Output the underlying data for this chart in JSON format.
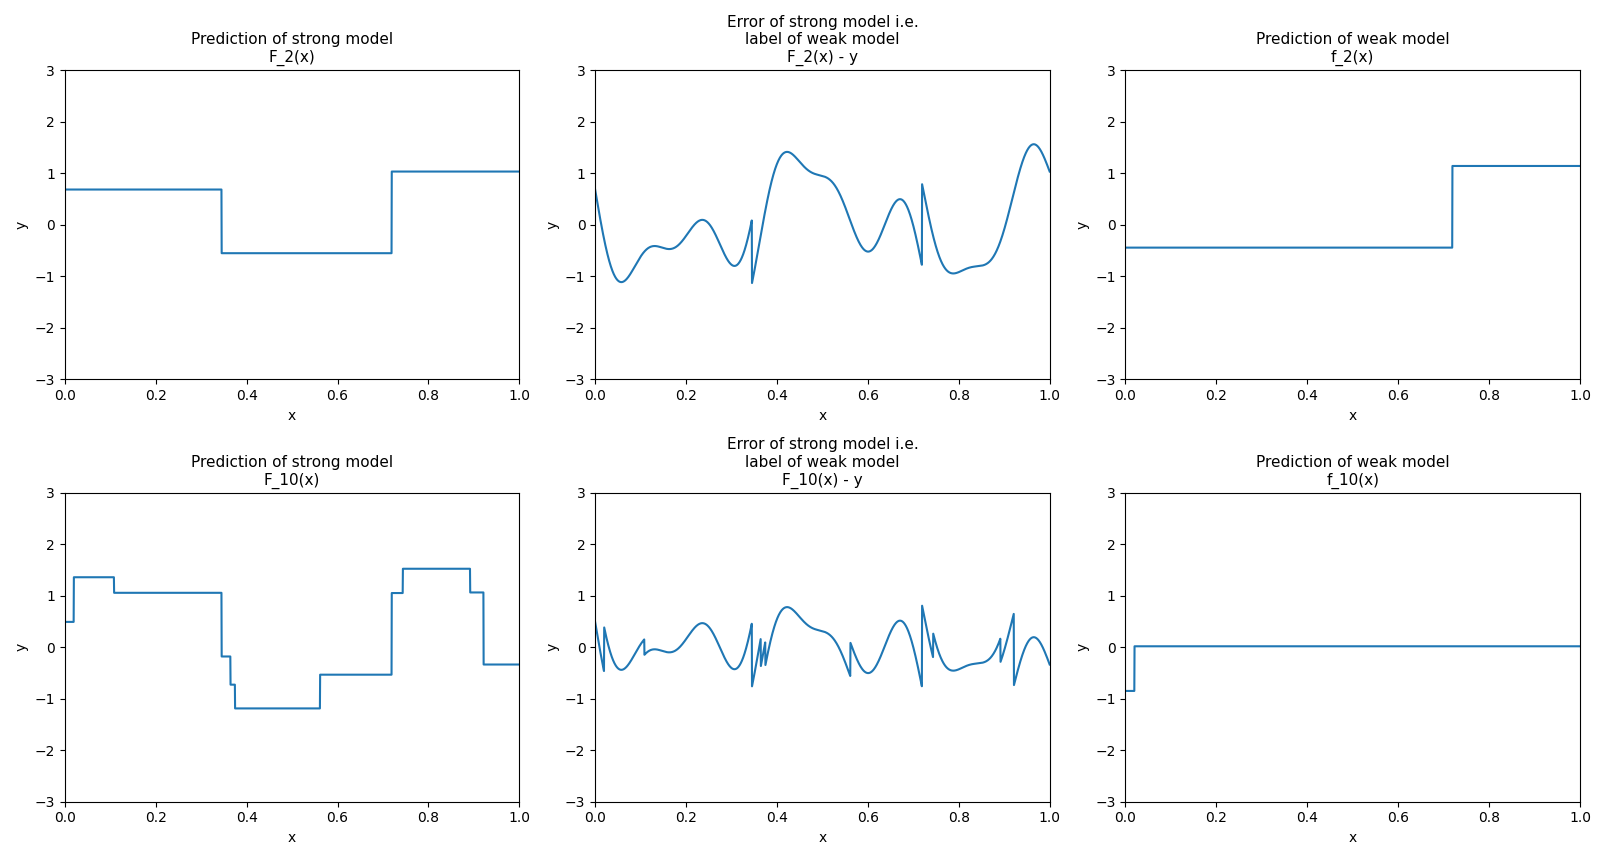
{
  "titles_row1": [
    "Prediction of strong model\nF_2(x)",
    "Error of strong model i.e.\nlabel of weak model\nF_2(x) - y",
    "Prediction of weak model\nf_2(x)"
  ],
  "titles_row2": [
    "Prediction of strong model\nF_10(x)",
    "Error of strong model i.e.\nlabel of weak model\nF_10(x) - y",
    "Prediction of weak model\nf_10(x)"
  ],
  "xlabel": "x",
  "ylabel": "y",
  "ylim": [
    -3,
    3
  ],
  "xlim": [
    0.0,
    1.0
  ],
  "line_color": "#1f77b4",
  "n_points": 2000
}
